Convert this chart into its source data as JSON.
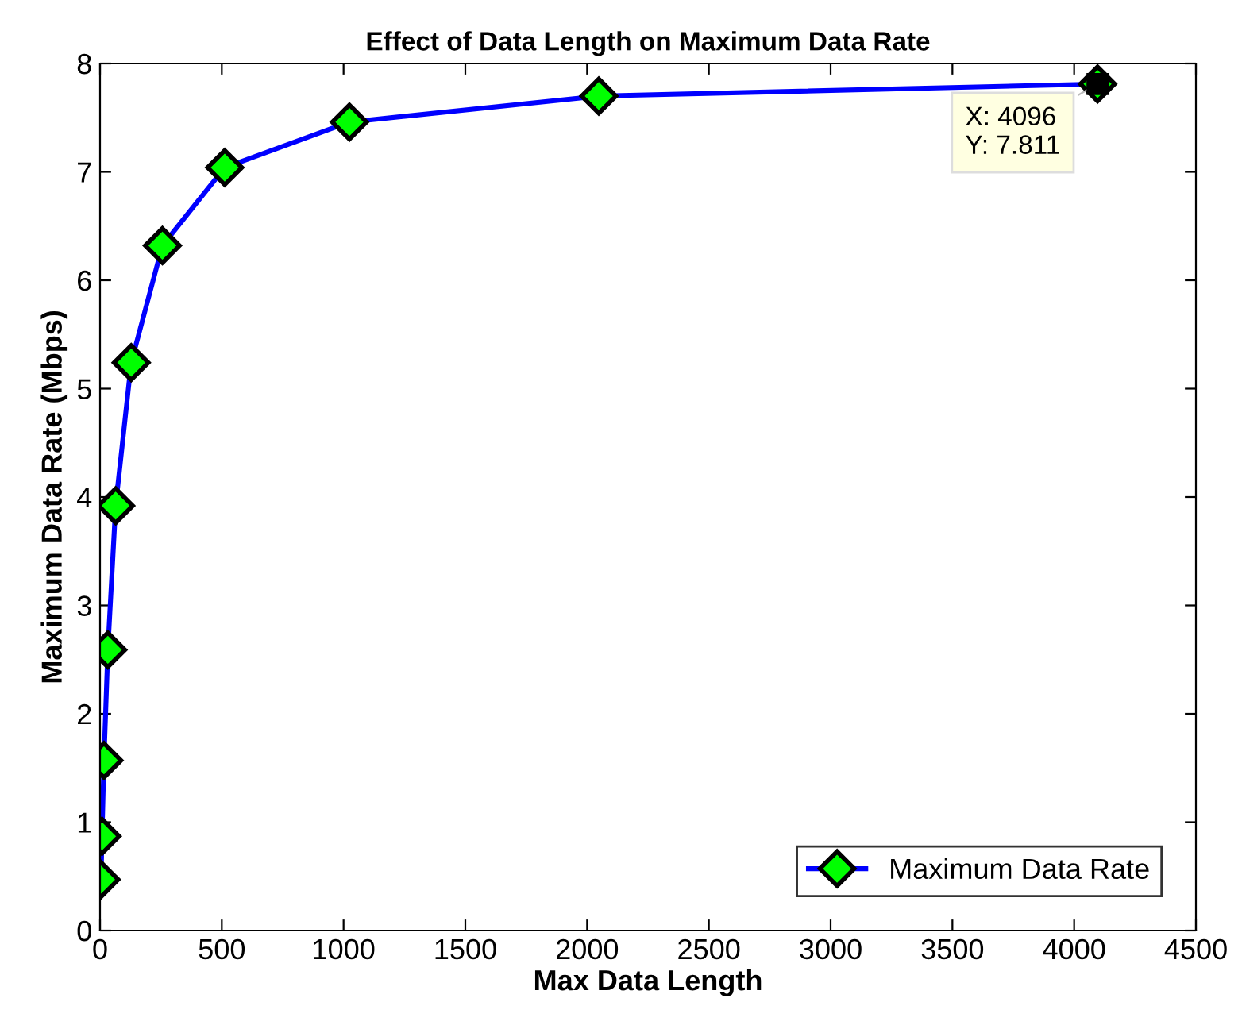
{
  "chart_data": {
    "type": "line",
    "title": "Effect of Data Length on Maximum Data Rate",
    "xlabel": "Max Data Length",
    "ylabel": "Maximum Data Rate (Mbps)",
    "x": [
      4,
      8,
      16,
      32,
      64,
      128,
      256,
      512,
      1024,
      2048,
      4096
    ],
    "series": [
      {
        "name": "Maximum Data Rate",
        "color": "#0000ff",
        "values": [
          0.47,
          0.87,
          1.57,
          2.59,
          3.92,
          5.24,
          6.32,
          7.04,
          7.46,
          7.7,
          7.811
        ]
      }
    ],
    "marker": "diamond",
    "line_style": "solid",
    "grid": false,
    "legend": "bottom right",
    "xlim": [
      0,
      4500
    ],
    "xticks": [
      0,
      500,
      1000,
      1500,
      2000,
      2500,
      3000,
      3500,
      4000,
      4500
    ],
    "ylim": [
      0,
      8
    ],
    "yticks": [
      0,
      1,
      2,
      3,
      4,
      5,
      6,
      7,
      8
    ],
    "annotations": [
      {
        "text": "X: 4096\nY: 7.811",
        "x": 4096,
        "y": 7.811
      }
    ]
  }
}
